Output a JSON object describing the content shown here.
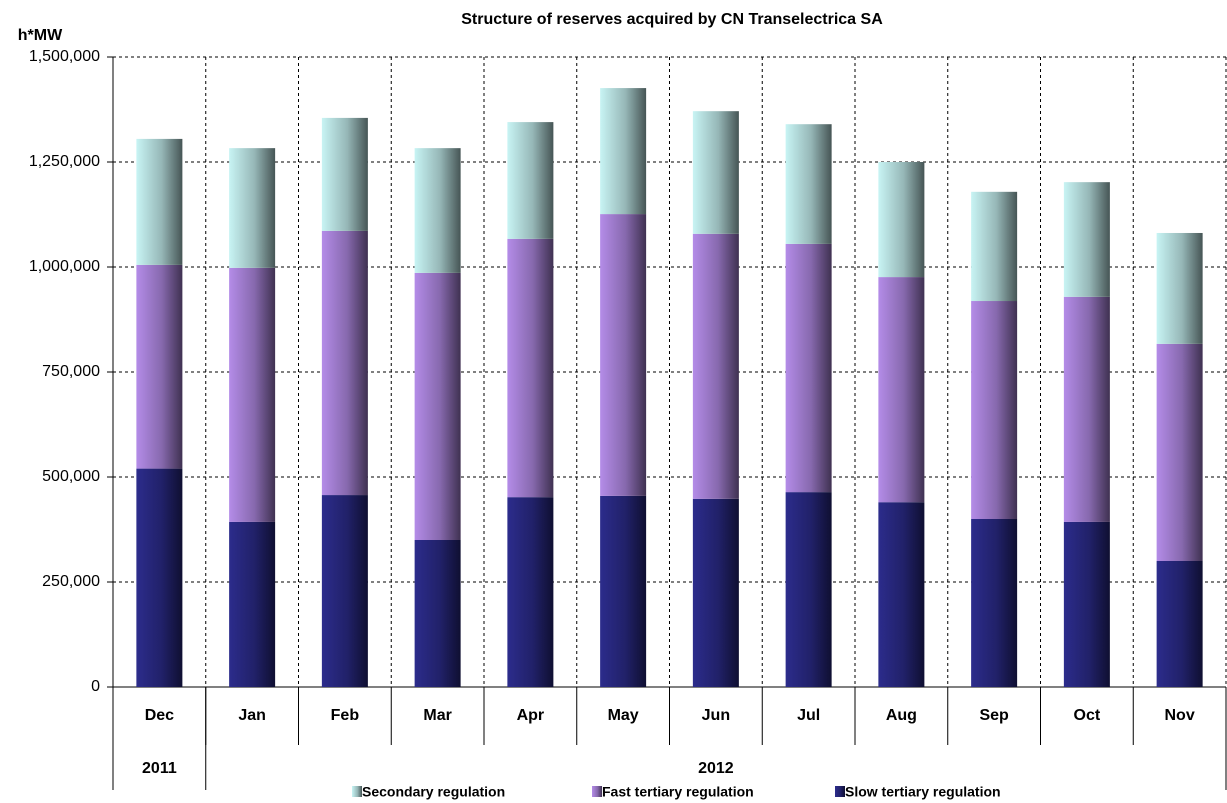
{
  "chart_data": {
    "type": "stacked-bar",
    "title": "Structure of reserves acquired by CN Transelectrica SA",
    "y_label": "h*MW",
    "categories": [
      "Dec",
      "Jan",
      "Feb",
      "Mar",
      "Apr",
      "May",
      "Jun",
      "Jul",
      "Aug",
      "Sep",
      "Oct",
      "Nov"
    ],
    "groups": [
      {
        "label": "2011",
        "span": 1
      },
      {
        "label": "2012",
        "span": 11
      }
    ],
    "series": [
      {
        "name": "Secondary regulation",
        "color": "#c8f4f4",
        "values": [
          300000,
          285000,
          269000,
          297000,
          278000,
          300000,
          292000,
          285000,
          274000,
          260000,
          273000,
          264000
        ]
      },
      {
        "name": "Fast tertiary regulation",
        "color": "#b48ce8",
        "values": [
          485000,
          605000,
          629000,
          636000,
          615000,
          671000,
          631000,
          591000,
          536000,
          519000,
          536000,
          517000
        ]
      },
      {
        "name": "Slow tertiary regulation",
        "color": "#2c2c8c",
        "values": [
          520000,
          393000,
          457000,
          350000,
          452000,
          455000,
          448000,
          464000,
          440000,
          400000,
          393000,
          300000
        ]
      }
    ],
    "ylim": [
      0,
      1500000
    ],
    "yticks": [
      0,
      {
        "value": 250000,
        "label": "250,000"
      },
      {
        "value": 500000,
        "label": "500,000"
      },
      {
        "value": 750000,
        "label": "750,000"
      },
      {
        "value": 1000000,
        "label": "1,000,000"
      },
      {
        "value": 1250000,
        "label": "1,250,000"
      },
      {
        "value": 1500000,
        "label": "1,500,000"
      }
    ],
    "grid": true
  }
}
